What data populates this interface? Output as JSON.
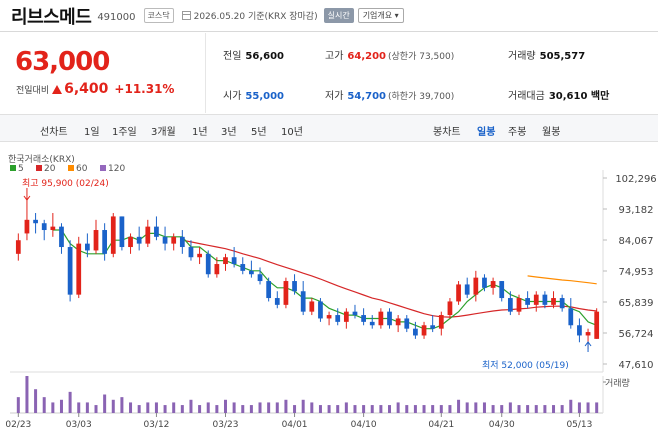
{
  "header": {
    "name": "리브스메드",
    "code": "491000",
    "market": "코스닥",
    "date_text": "2026.05.20  기준(KRX 장마감)",
    "live_label": "실시간",
    "info_label": "기업개요 ▾"
  },
  "price": {
    "current": "63,000",
    "change_label": "전일대비",
    "change_amount": "6,400",
    "change_pct": "+11.31%"
  },
  "stats": {
    "prev_close": {
      "label": "전일",
      "value": "56,600"
    },
    "high": {
      "label": "고가",
      "value": "64,200",
      "sub": "(상한가 73,500)"
    },
    "volume": {
      "label": "거래량",
      "value": "505,577"
    },
    "open": {
      "label": "시가",
      "value": "55,000"
    },
    "low": {
      "label": "저가",
      "value": "54,700",
      "sub": "(하한가 39,700)"
    },
    "amount": {
      "label": "거래대금",
      "value": "30,610 백만"
    }
  },
  "tabs": {
    "left": [
      "선차트",
      "1일",
      "1주일",
      "3개월",
      "1년",
      "3년",
      "5년",
      "10년"
    ],
    "right": [
      "봉차트",
      "일봉",
      "주봉",
      "월봉"
    ],
    "active_right": "일봉"
  },
  "chart_data": {
    "type": "candlestick",
    "source": "한국거래소(KRX)",
    "legend": [
      {
        "name": "5",
        "color": "#2ca02c"
      },
      {
        "name": "20",
        "color": "#d62728"
      },
      {
        "name": "60",
        "color": "#ff8c00"
      },
      {
        "name": "120",
        "color": "#9467bd"
      }
    ],
    "y_ticks": [
      "102,296",
      "93,182",
      "84,067",
      "74,953",
      "65,839",
      "56,724",
      "47,610"
    ],
    "ylim": [
      47610,
      102296
    ],
    "x_ticks": [
      "02/23",
      "03/03",
      "03/12",
      "03/23",
      "04/01",
      "04/10",
      "04/21",
      "04/30",
      "05/13"
    ],
    "x_tick_idx": [
      0,
      7,
      16,
      24,
      32,
      40,
      49,
      56,
      65
    ],
    "annotation_high": "최고 95,900 (02/24)",
    "annotation_low": "최저 52,000 (05/19)",
    "volume_label": "거래량",
    "candles": [
      [
        80,
        86,
        78,
        84
      ],
      [
        86,
        96,
        84,
        90
      ],
      [
        90,
        92,
        86,
        89
      ],
      [
        89,
        90,
        84,
        87
      ],
      [
        87,
        92,
        85,
        88
      ],
      [
        88,
        89,
        80,
        82
      ],
      [
        82,
        84,
        66,
        68
      ],
      [
        68,
        85,
        67,
        83
      ],
      [
        83,
        86,
        79,
        81
      ],
      [
        81,
        90,
        80,
        87
      ],
      [
        87,
        89,
        78,
        80
      ],
      [
        80,
        92,
        79,
        91
      ],
      [
        91,
        91,
        81,
        82
      ],
      [
        82,
        86,
        80,
        85
      ],
      [
        85,
        88,
        81,
        83
      ],
      [
        83,
        90,
        82,
        88
      ],
      [
        88,
        91,
        84,
        85
      ],
      [
        85,
        88,
        81,
        83
      ],
      [
        83,
        86,
        81,
        85
      ],
      [
        85,
        87,
        80,
        82
      ],
      [
        82,
        84,
        78,
        79
      ],
      [
        79,
        82,
        77,
        80
      ],
      [
        80,
        81,
        73,
        74
      ],
      [
        74,
        79,
        73,
        77
      ],
      [
        77,
        80,
        75,
        79
      ],
      [
        79,
        82,
        76,
        77
      ],
      [
        77,
        79,
        74,
        75
      ],
      [
        75,
        78,
        73,
        74
      ],
      [
        74,
        76,
        71,
        72
      ],
      [
        72,
        73,
        66,
        67
      ],
      [
        67,
        69,
        64,
        65
      ],
      [
        65,
        73,
        64,
        72
      ],
      [
        72,
        74,
        68,
        69
      ],
      [
        69,
        72,
        62,
        63
      ],
      [
        63,
        67,
        62,
        66
      ],
      [
        66,
        67,
        60,
        61
      ],
      [
        61,
        63,
        59,
        62
      ],
      [
        62,
        64,
        59,
        60
      ],
      [
        60,
        64,
        58,
        63
      ],
      [
        63,
        65,
        61,
        62
      ],
      [
        62,
        64,
        59,
        60
      ],
      [
        60,
        62,
        58,
        59
      ],
      [
        59,
        64,
        58,
        63
      ],
      [
        63,
        64,
        58,
        59
      ],
      [
        59,
        62,
        57,
        61
      ],
      [
        61,
        62,
        57,
        58
      ],
      [
        58,
        60,
        55,
        56
      ],
      [
        56,
        60,
        55,
        59
      ],
      [
        59,
        62,
        57,
        58
      ],
      [
        58,
        63,
        56,
        62
      ],
      [
        62,
        67,
        61,
        66
      ],
      [
        66,
        72,
        65,
        71
      ],
      [
        71,
        73,
        67,
        68
      ],
      [
        68,
        75,
        66,
        73
      ],
      [
        73,
        74,
        69,
        70
      ],
      [
        70,
        73,
        68,
        72
      ],
      [
        72,
        72,
        66,
        67
      ],
      [
        67,
        69,
        62,
        63
      ],
      [
        63,
        68,
        62,
        67
      ],
      [
        67,
        69,
        64,
        65
      ],
      [
        65,
        69,
        63,
        68
      ],
      [
        68,
        69,
        64,
        65
      ],
      [
        65,
        69,
        64,
        67
      ],
      [
        67,
        68,
        63,
        64
      ],
      [
        64,
        67,
        58,
        59
      ],
      [
        59,
        61,
        54,
        56
      ],
      [
        56,
        58,
        52,
        57
      ],
      [
        55,
        64,
        55,
        63
      ]
    ],
    "ma5": [
      null,
      null,
      null,
      null,
      87,
      87,
      83,
      81,
      80,
      80,
      80,
      84,
      84,
      85,
      84,
      86,
      86,
      85,
      85,
      85,
      82,
      82,
      80,
      78,
      78,
      77,
      76,
      75,
      75,
      72,
      70,
      70,
      69,
      67,
      67,
      66,
      64,
      63,
      62,
      62,
      61,
      61,
      61,
      61,
      60,
      60,
      59,
      58,
      58,
      59,
      61,
      63,
      66,
      68,
      70,
      71,
      70,
      68,
      67,
      66,
      66,
      66,
      66,
      66,
      64,
      63,
      60,
      59
    ],
    "ma20": [
      null,
      null,
      null,
      null,
      null,
      null,
      null,
      null,
      null,
      null,
      null,
      null,
      null,
      null,
      null,
      null,
      null,
      null,
      null,
      84,
      83.5,
      83,
      82.5,
      82,
      81.5,
      80.8,
      80,
      79.3,
      78.6,
      77.7,
      76.8,
      76,
      75.2,
      74.3,
      73.5,
      72.6,
      71.6,
      70.6,
      69.7,
      68.8,
      67.9,
      67,
      66.4,
      65.6,
      64.8,
      64,
      63.2,
      62.4,
      61.8,
      61.5,
      61.4,
      61.6,
      62,
      62.4,
      62.8,
      63.2,
      63.5,
      63.6,
      63.8,
      64,
      64.3,
      64.5,
      64.6,
      64.6,
      64.4,
      63.9,
      63.5,
      63.2
    ],
    "ma60": [
      null,
      null,
      null,
      null,
      null,
      null,
      null,
      null,
      null,
      null,
      null,
      null,
      null,
      null,
      null,
      null,
      null,
      null,
      null,
      null,
      null,
      null,
      null,
      null,
      null,
      null,
      null,
      null,
      null,
      null,
      null,
      null,
      null,
      null,
      null,
      null,
      null,
      null,
      null,
      null,
      null,
      null,
      null,
      null,
      null,
      null,
      null,
      null,
      null,
      null,
      null,
      null,
      null,
      null,
      null,
      null,
      null,
      null,
      null,
      73.5,
      73.2,
      72.9,
      72.6,
      72.3,
      72.1,
      71.8,
      71.5,
      71.2
    ],
    "volumes": [
      6,
      14,
      9,
      6,
      4,
      5,
      8,
      4,
      4,
      3,
      7,
      5,
      6,
      4,
      3,
      4,
      4,
      3,
      4,
      3,
      5,
      3,
      4,
      3,
      5,
      4,
      3,
      3,
      4,
      4,
      4,
      5,
      3,
      5,
      4,
      3,
      3,
      3,
      4,
      3,
      3,
      3,
      3,
      3,
      4,
      3,
      3,
      3,
      3,
      3,
      3,
      5,
      4,
      4,
      4,
      3,
      3,
      4,
      3,
      3,
      3,
      3,
      3,
      3,
      5,
      4,
      4,
      4
    ]
  }
}
